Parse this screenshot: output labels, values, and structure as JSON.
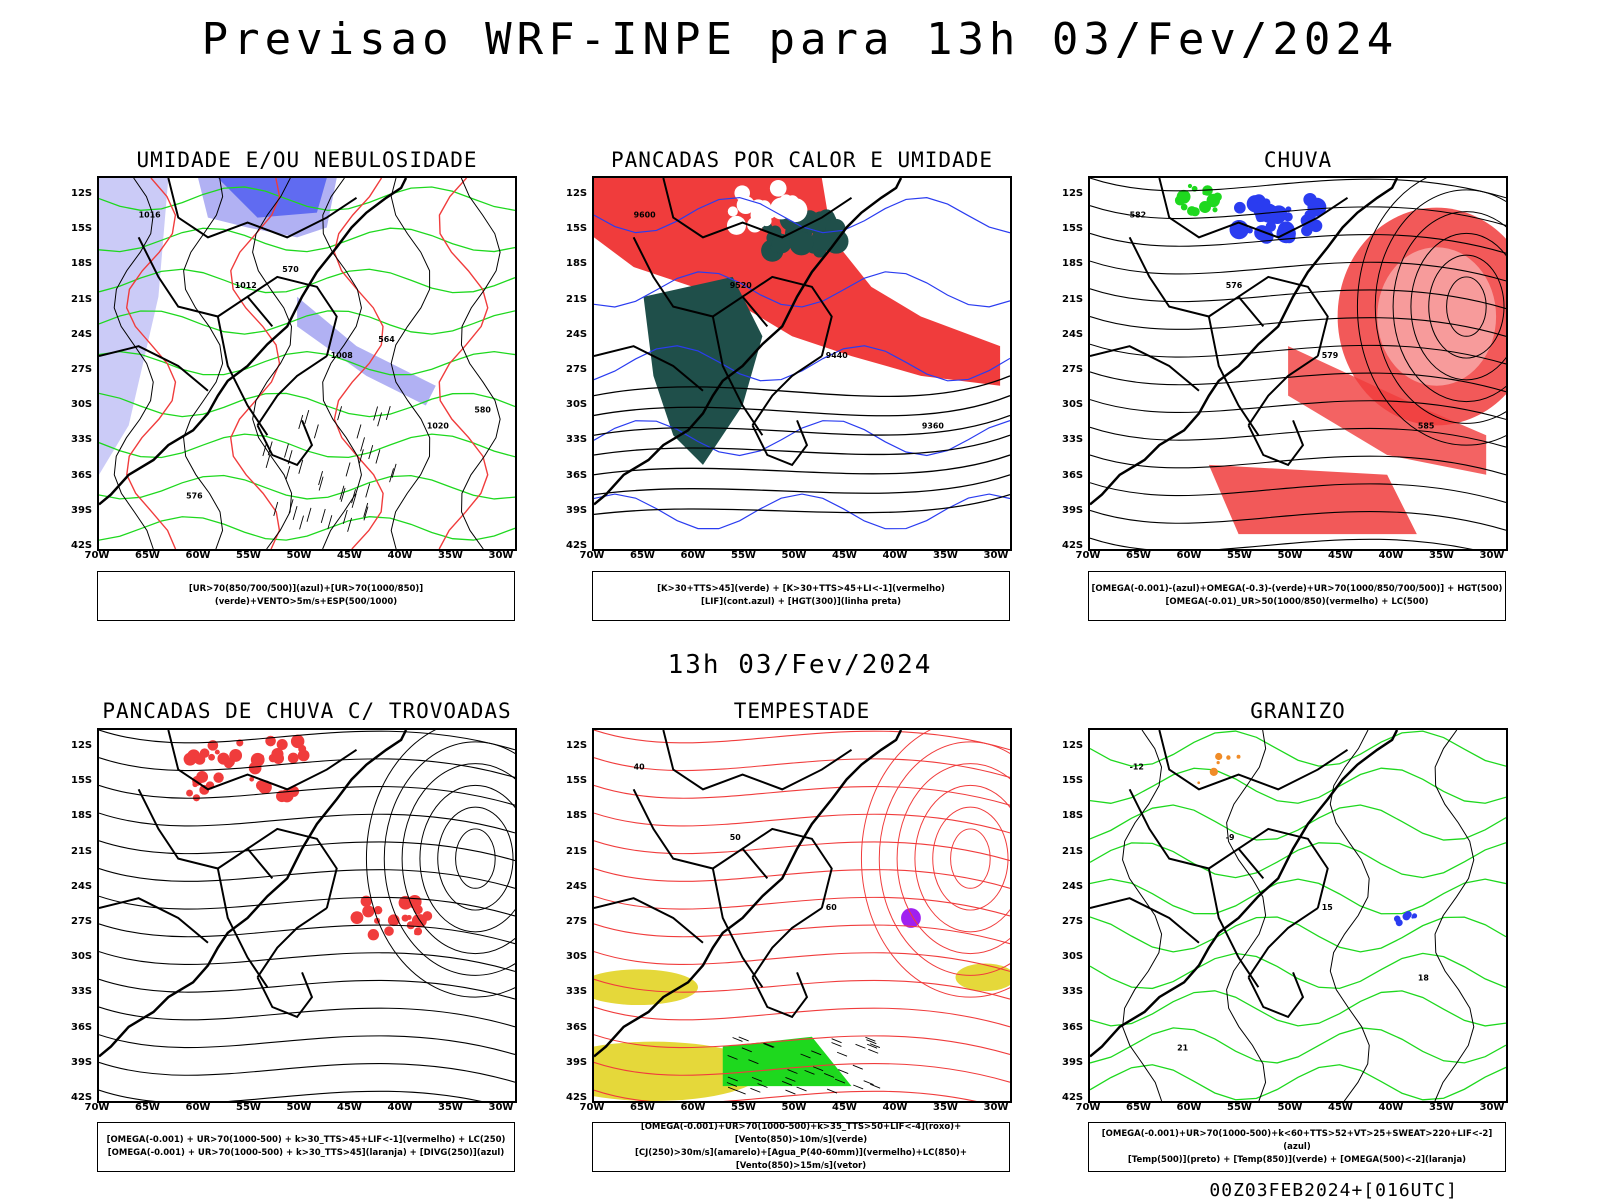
{
  "header": {
    "title": "Previsao WRF-INPE  para 13h 03/Fev/2024",
    "middle_label": "13h 03/Fev/2024",
    "footer": "00Z03FEB2024+[016UTC]"
  },
  "axes": {
    "lat_ticks": [
      "12S",
      "15S",
      "18S",
      "21S",
      "24S",
      "27S",
      "30S",
      "33S",
      "36S",
      "39S",
      "42S"
    ],
    "lon_ticks": [
      "70W",
      "65W",
      "60W",
      "55W",
      "50W",
      "45W",
      "40W",
      "35W",
      "30W"
    ]
  },
  "panels": [
    {
      "id": "umidade",
      "title": "UMIDADE E/OU NEBULOSIDADE",
      "legend": [
        "[UR>70(850/700/500)](azul)+[UR>70(1000/850)](verde)+VENTO>5m/s+ESP(500/1000)"
      ],
      "labels": [
        "1016",
        "1012",
        "1008",
        "1020",
        "576",
        "570",
        "564",
        "580"
      ]
    },
    {
      "id": "pancadas-calor",
      "title": "PANCADAS POR CALOR E UMIDADE",
      "legend": [
        "[K>30+TTS>45](verde) + [K>30+TTS>45+LI<-1](vermelho)",
        "[LIF](cont.azul) + [HGT(300)](linha preta)"
      ],
      "labels": [
        "9600",
        "9520",
        "9440",
        "9360"
      ]
    },
    {
      "id": "chuva",
      "title": "CHUVA",
      "legend": [
        "[OMEGA(-0.001)-(azul)+OMEGA(-0.3)-(verde)+UR>70(1000/850/700/500)] + HGT(500)",
        "[OMEGA(-0.01)_UR>50(1000/850)(vermelho) + LC(500)"
      ],
      "labels": [
        "582",
        "576",
        "579",
        "585"
      ]
    },
    {
      "id": "trovoadas",
      "title": "PANCADAS DE CHUVA C/ TROVOADAS",
      "legend": [
        "[OMEGA(-0.001) + UR>70(1000-500) + k>30_TTS>45+LIF<-1](vermelho) + LC(250)",
        "[OMEGA(-0.001) + UR>70(1000-500) + k>30_TTS>45](laranja) + [DIVG(250)](azul)"
      ],
      "labels": []
    },
    {
      "id": "tempestade",
      "title": "TEMPESTADE",
      "legend": [
        "[OMEGA(-0.001)+UR>70(1000-500)+k>35_TTS>50+LIF<-4](roxo)+[Vento(850)>10m/s](verde)",
        "[CJ(250)>30m/s](amarelo)+[Agua_P(40-60mm)](vermelho)+LC(850)+[Vento(850)>15m/s](vetor)"
      ],
      "labels": [
        "40",
        "50",
        "60"
      ]
    },
    {
      "id": "granizo",
      "title": "GRANIZO",
      "legend": [
        "[OMEGA(-0.001)+UR>70(1000-500)+k<60+TTS>52+VT>25+SWEAT>220+LIF<-2](azul)",
        "[Temp(500)](preto) + [Temp(850)](verde) + [OMEGA(500)<-2](laranja)"
      ],
      "labels": [
        "-12",
        "-9",
        "15",
        "18",
        "21"
      ]
    }
  ],
  "colors": {
    "blue": "#2a3cf0",
    "lightblue": "#a9a9f2",
    "green": "#1ed81e",
    "red": "#f03c3c",
    "darkteal": "#1f4f4a",
    "yellow": "#e5d83a",
    "purple": "#a020f0",
    "orange": "#f08c28"
  }
}
